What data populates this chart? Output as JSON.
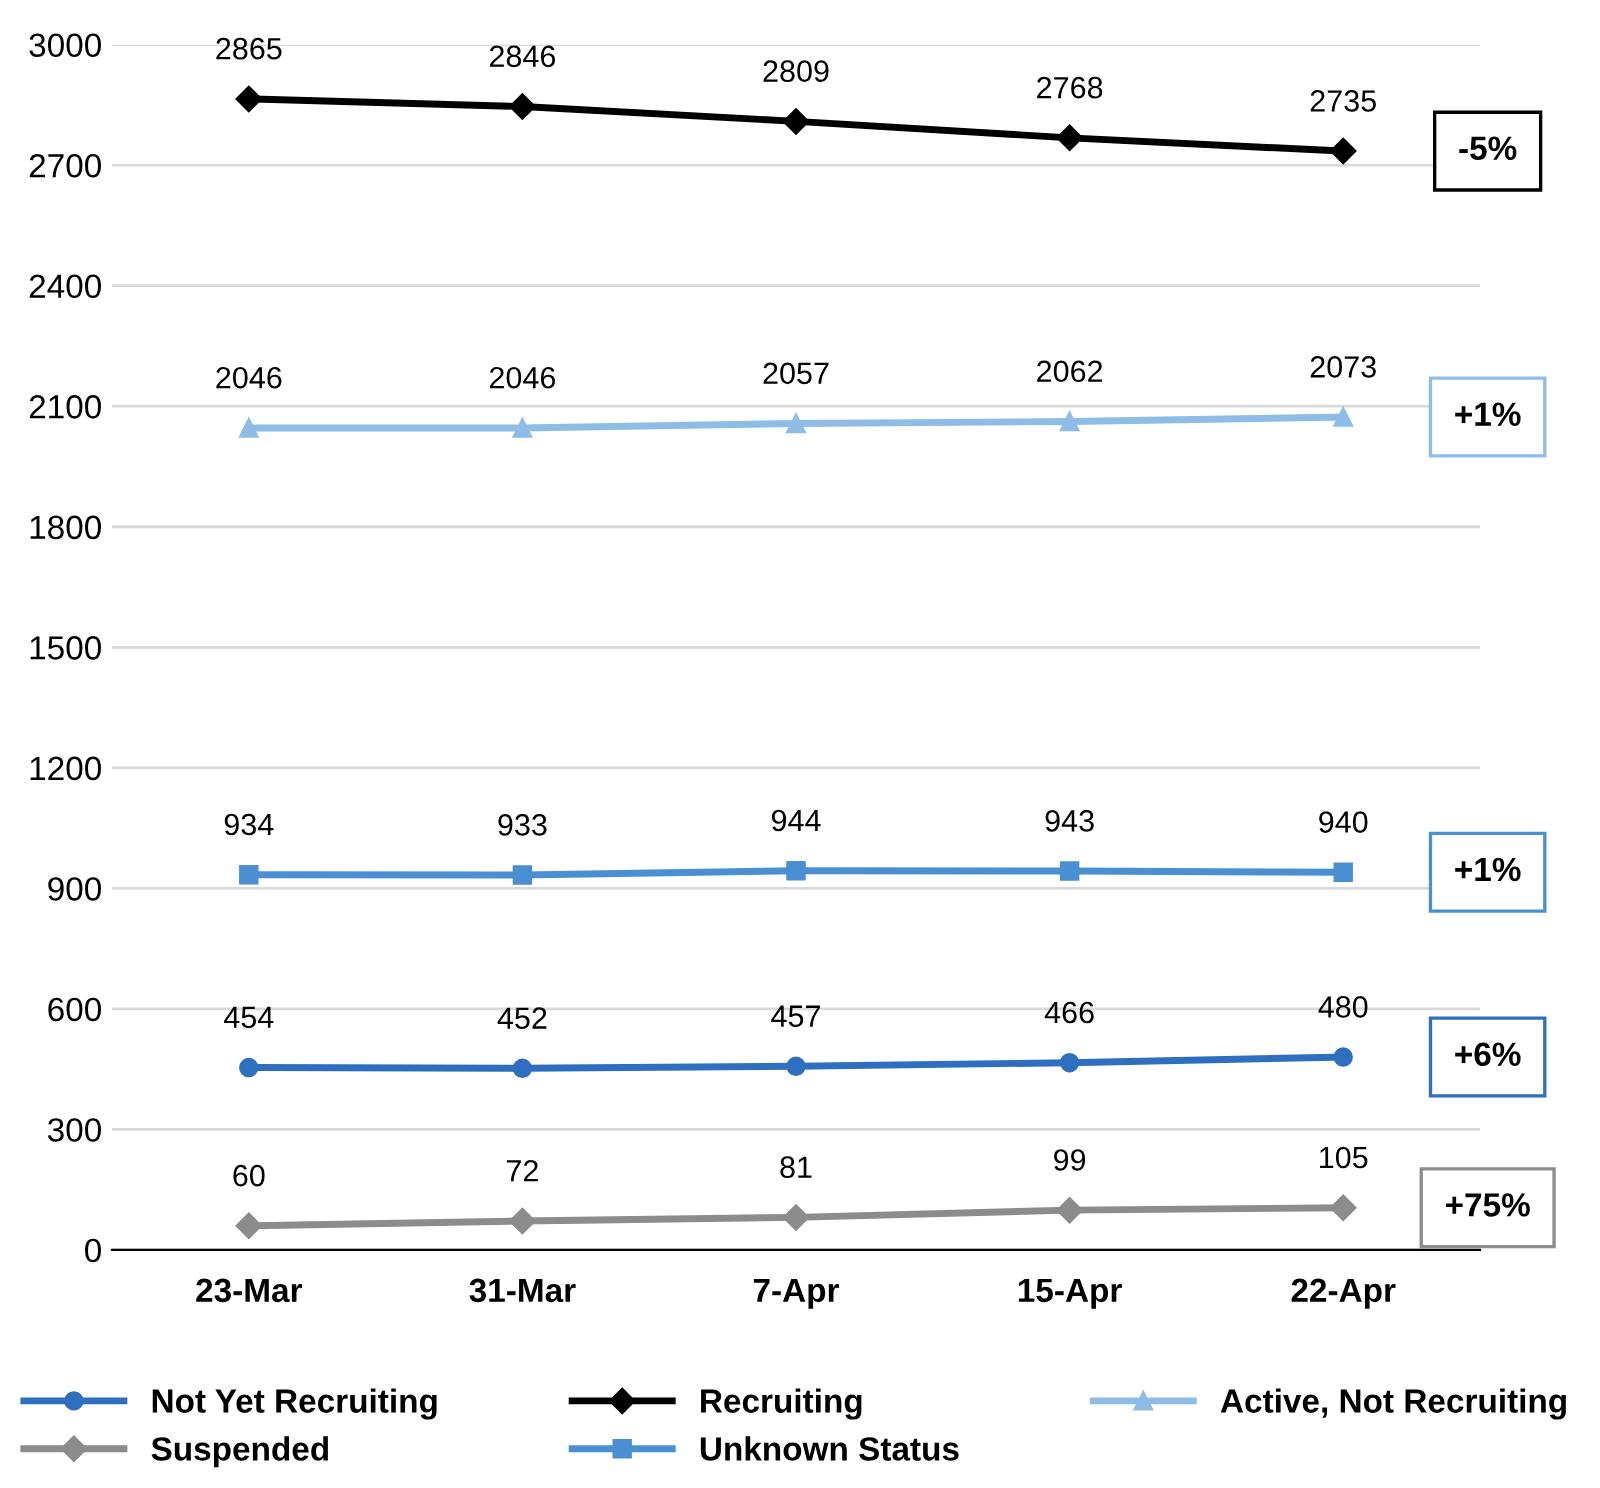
{
  "chart_data": {
    "type": "line",
    "categories": [
      "23-Mar",
      "31-Mar",
      "7-Apr",
      "15-Apr",
      "22-Apr"
    ],
    "series": [
      {
        "name": "Not Yet Recruiting",
        "color": "#2f6fbf",
        "marker": "circle",
        "values": [
          454,
          452,
          457,
          466,
          480
        ]
      },
      {
        "name": "Recruiting",
        "color": "#000000",
        "marker": "diamond",
        "values": [
          2865,
          2846,
          2809,
          2768,
          2735
        ]
      },
      {
        "name": "Active, Not Recruiting",
        "color": "#8dbde6",
        "marker": "triangle",
        "values": [
          2046,
          2046,
          2057,
          2062,
          2073
        ]
      },
      {
        "name": "Suspended",
        "color": "#8c8c8c",
        "marker": "diamond",
        "values": [
          60,
          72,
          81,
          99,
          105
        ]
      },
      {
        "name": "Unknown Status",
        "color": "#4a8fd2",
        "marker": "square",
        "values": [
          934,
          933,
          944,
          943,
          940
        ]
      }
    ],
    "ylim": [
      0,
      3000
    ],
    "yticks": [
      0,
      300,
      600,
      900,
      1200,
      1500,
      1800,
      2100,
      2400,
      2700,
      3000
    ],
    "grid": "y",
    "legend": "bottom",
    "data_labels": true,
    "annotations": [
      "+6%",
      "-5%",
      "+1%",
      "+75%",
      "+1%"
    ]
  }
}
